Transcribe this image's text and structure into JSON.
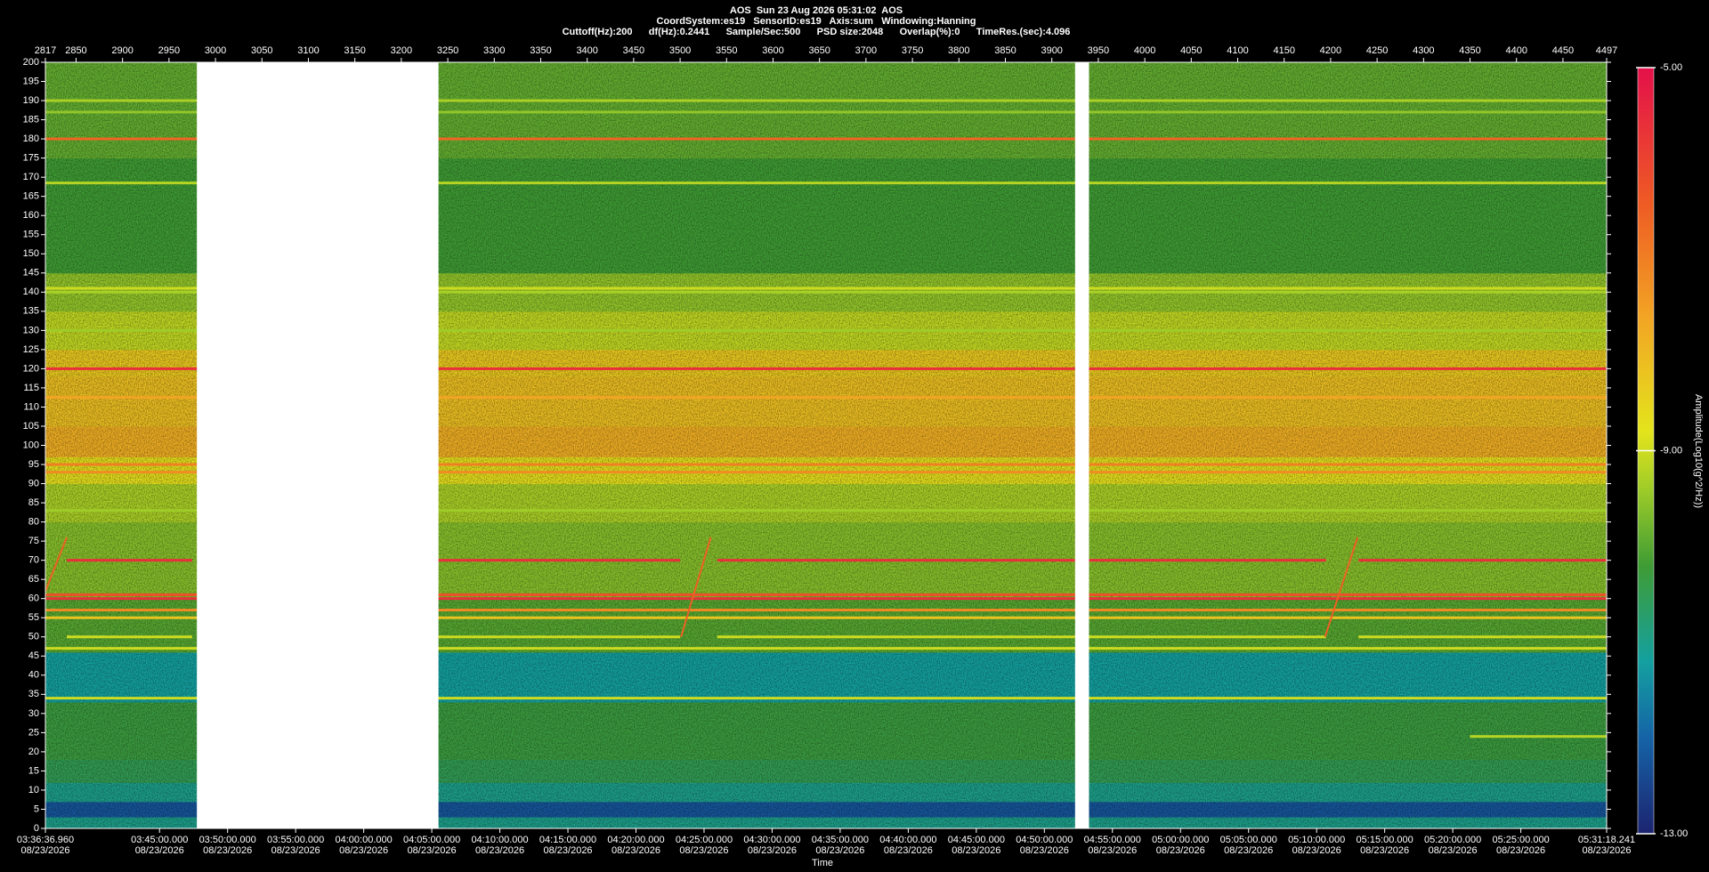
{
  "chart_data": {
    "type": "spectrogram",
    "header": [
      "AOS  Sun 23 Aug 2026 05:31:02  AOS",
      "CoordSystem:es19   SensorID:es19   Axis:sum   Windowing:Hanning",
      "Cuttoff(Hz):200      df(Hz):0.2441      Sample/Sec:500      PSD size:2048      Overlap(%):0      TimeRes.(sec):4.096"
    ],
    "x_label": "Time",
    "colorbar_label": "Amplitude(Log10(g^2/Hz))",
    "xlim": [
      2817,
      4497
    ],
    "xticks": [
      2817,
      2850,
      2900,
      2950,
      3000,
      3050,
      3100,
      3150,
      3200,
      3250,
      3300,
      3350,
      3400,
      3450,
      3500,
      3550,
      3600,
      3650,
      3700,
      3750,
      3800,
      3850,
      3900,
      3950,
      4000,
      4050,
      4100,
      4150,
      4200,
      4250,
      4300,
      4350,
      4400,
      4450,
      4497
    ],
    "time_ticks": [
      {
        "time": "03:36:36.960",
        "date": "08/23/2026"
      },
      {
        "time": "03:45:00.000",
        "date": "08/23/2026"
      },
      {
        "time": "03:50:00.000",
        "date": "08/23/2026"
      },
      {
        "time": "03:55:00.000",
        "date": "08/23/2026"
      },
      {
        "time": "04:00:00.000",
        "date": "08/23/2026"
      },
      {
        "time": "04:05:00.000",
        "date": "08/23/2026"
      },
      {
        "time": "04:10:00.000",
        "date": "08/23/2026"
      },
      {
        "time": "04:15:00.000",
        "date": "08/23/2026"
      },
      {
        "time": "04:20:00.000",
        "date": "08/23/2026"
      },
      {
        "time": "04:25:00.000",
        "date": "08/23/2026"
      },
      {
        "time": "04:30:00.000",
        "date": "08/23/2026"
      },
      {
        "time": "04:35:00.000",
        "date": "08/23/2026"
      },
      {
        "time": "04:40:00.000",
        "date": "08/23/2026"
      },
      {
        "time": "04:45:00.000",
        "date": "08/23/2026"
      },
      {
        "time": "04:50:00.000",
        "date": "08/23/2026"
      },
      {
        "time": "04:55:00.000",
        "date": "08/23/2026"
      },
      {
        "time": "05:00:00.000",
        "date": "08/23/2026"
      },
      {
        "time": "05:05:00.000",
        "date": "08/23/2026"
      },
      {
        "time": "05:10:00.000",
        "date": "08/23/2026"
      },
      {
        "time": "05:15:00.000",
        "date": "08/23/2026"
      },
      {
        "time": "05:20:00.000",
        "date": "08/23/2026"
      },
      {
        "time": "05:25:00.000",
        "date": "08/23/2026"
      },
      {
        "time": "05:31:18.241",
        "date": "08/23/2026"
      }
    ],
    "ylim": [
      0,
      200
    ],
    "yticks": [
      0,
      5,
      10,
      15,
      20,
      25,
      30,
      35,
      40,
      45,
      50,
      55,
      60,
      65,
      70,
      75,
      80,
      85,
      90,
      95,
      100,
      105,
      110,
      115,
      120,
      125,
      130,
      135,
      140,
      145,
      150,
      155,
      160,
      165,
      170,
      175,
      180,
      185,
      190,
      195,
      200
    ],
    "clim": [
      -13,
      -5
    ],
    "cticks": [
      {
        "value": -5,
        "label": "-5.00"
      },
      {
        "value": -9,
        "label": "-9.00"
      },
      {
        "value": -13,
        "label": "-13.00"
      }
    ],
    "colormap": [
      {
        "value": -13,
        "color": "#1c2470"
      },
      {
        "value": -12,
        "color": "#1563a6"
      },
      {
        "value": -11.2,
        "color": "#14a0a0"
      },
      {
        "value": -10.2,
        "color": "#3f9c34"
      },
      {
        "value": -9.4,
        "color": "#9fcc28"
      },
      {
        "value": -8.8,
        "color": "#e4e41c"
      },
      {
        "value": -7.6,
        "color": "#f2a424"
      },
      {
        "value": -6.4,
        "color": "#ee5a24"
      },
      {
        "value": -5,
        "color": "#e4104a"
      }
    ],
    "bands": [
      [
        0,
        3,
        -11
      ],
      [
        3,
        7,
        -12.2
      ],
      [
        7,
        12,
        -11
      ],
      [
        12,
        18,
        -10.5
      ],
      [
        18,
        33,
        -10.3
      ],
      [
        33,
        46,
        -11.2
      ],
      [
        46,
        60,
        -10
      ],
      [
        60,
        80,
        -9.6
      ],
      [
        80,
        90,
        -9.3
      ],
      [
        90,
        97,
        -8.7
      ],
      [
        97,
        105,
        -7.8
      ],
      [
        105,
        118,
        -8.1
      ],
      [
        118,
        125,
        -8.3
      ],
      [
        125,
        135,
        -9.1
      ],
      [
        135,
        145,
        -9.5
      ],
      [
        145,
        175,
        -10.2
      ],
      [
        175,
        200,
        -9.9
      ]
    ],
    "lines": [
      {
        "freq": 120,
        "amplitude": -5.6
      },
      {
        "freq": 180,
        "amplitude": -6.6
      },
      {
        "freq": 60,
        "amplitude": -5.6
      },
      {
        "freq": 61,
        "amplitude": -6.2
      },
      {
        "freq": 57,
        "amplitude": -7.2
      },
      {
        "freq": 55,
        "amplitude": -8.2
      },
      {
        "freq": 47,
        "amplitude": -9
      },
      {
        "freq": 34,
        "amplitude": -9
      },
      {
        "freq": 95,
        "amplitude": -7
      },
      {
        "freq": 93,
        "amplitude": -7.2
      },
      {
        "freq": 112.5,
        "amplitude": -7.6
      },
      {
        "freq": 141,
        "amplitude": -9
      },
      {
        "freq": 140,
        "amplitude": -9.3
      },
      {
        "freq": 190,
        "amplitude": -9.3
      },
      {
        "freq": 187,
        "amplitude": -9.5
      },
      {
        "freq": 168.5,
        "amplitude": -9.2
      },
      {
        "freq": 130,
        "amplitude": -9.4
      },
      {
        "freq": 83,
        "amplitude": -9.4
      },
      {
        "freq": 70,
        "amplitude": -5.6,
        "segments": [
          [
            2840,
            2975
          ],
          [
            3240,
            3500
          ],
          [
            3540,
            3925
          ],
          [
            3940,
            4195
          ],
          [
            4230,
            4497
          ]
        ]
      },
      {
        "freq": 50,
        "amplitude": -9,
        "segments": [
          [
            2840,
            2975
          ],
          [
            3240,
            3500
          ],
          [
            3540,
            3925
          ],
          [
            3940,
            4195
          ],
          [
            4230,
            4497
          ]
        ]
      },
      {
        "freq": 24,
        "amplitude": -9.2,
        "segments": [
          [
            4350,
            4497
          ]
        ]
      }
    ],
    "sweeps": [
      {
        "x0": 2817,
        "f0": 62,
        "x1": 2840,
        "f1": 76,
        "amplitude": -6.5
      },
      {
        "x0": 3501,
        "f0": 50,
        "x1": 3533,
        "f1": 76,
        "amplitude": -6.5
      },
      {
        "x0": 4194,
        "f0": 50,
        "x1": 4229,
        "f1": 76,
        "amplitude": -6.5
      }
    ],
    "gaps": [
      [
        2980,
        3240
      ],
      [
        3925,
        3940
      ]
    ]
  }
}
